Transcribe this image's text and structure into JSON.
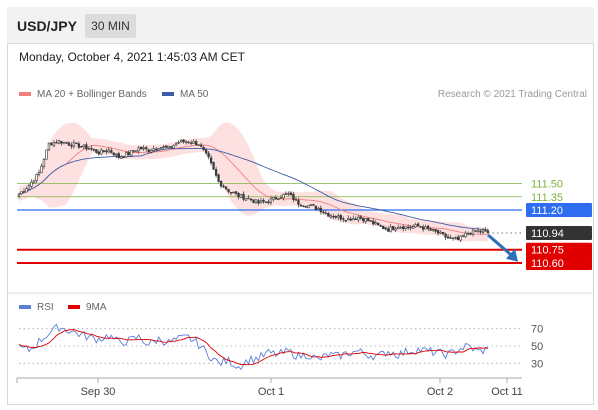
{
  "header": {
    "symbol": "USD/JPY",
    "timeframe": "30 MIN"
  },
  "datetime": "Monday, October 4, 2021 1:45:03 AM CET",
  "legend_price": [
    {
      "label": "MA 20 + Bollinger Bands",
      "color": "#f08080"
    },
    {
      "label": "MA 50",
      "color": "#3b5ca8"
    }
  ],
  "copyright": "Research © 2021 Trading Central",
  "legend_rsi": [
    {
      "label": "RSI",
      "color": "#5b7fd6"
    },
    {
      "label": "9MA",
      "color": "#e00000"
    }
  ],
  "colors": {
    "resistance": "#7cb342",
    "pivot": "#2e6cf0",
    "support": "#e00000",
    "last": "#333333",
    "candle_up": "#3a3a3a",
    "candle_down": "#3a3a3a",
    "band_fill": "#fcd6d6"
  },
  "chart_data": [
    {
      "type": "candlestick",
      "title": "USD/JPY 30 MIN",
      "ylim": [
        110.52,
        112.22
      ],
      "x_tick_labels": [
        "Sep 30",
        "Oct 1",
        "Oct 2",
        "Oct 11"
      ],
      "price_levels": [
        {
          "label": "111.50",
          "value": 111.5,
          "kind": "resistance"
        },
        {
          "label": "111.35",
          "value": 111.35,
          "kind": "resistance"
        },
        {
          "label": "111.20",
          "value": 111.2,
          "kind": "pivot"
        },
        {
          "label": "110.94",
          "value": 110.94,
          "kind": "last"
        },
        {
          "label": "110.75",
          "value": 110.75,
          "kind": "support"
        },
        {
          "label": "110.60",
          "value": 110.6,
          "kind": "support"
        }
      ],
      "close_anchors": [
        [
          0,
          111.38
        ],
        [
          4,
          111.48
        ],
        [
          8,
          111.62
        ],
        [
          12,
          111.95
        ],
        [
          16,
          111.98
        ],
        [
          20,
          111.95
        ],
        [
          24,
          111.93
        ],
        [
          28,
          111.9
        ],
        [
          32,
          111.85
        ],
        [
          36,
          111.88
        ],
        [
          40,
          111.8
        ],
        [
          44,
          111.84
        ],
        [
          48,
          111.9
        ],
        [
          52,
          111.88
        ],
        [
          56,
          111.92
        ],
        [
          60,
          111.9
        ],
        [
          64,
          111.97
        ],
        [
          68,
          111.98
        ],
        [
          72,
          111.95
        ],
        [
          76,
          111.78
        ],
        [
          80,
          111.52
        ],
        [
          84,
          111.42
        ],
        [
          88,
          111.36
        ],
        [
          92,
          111.33
        ],
        [
          96,
          111.28
        ],
        [
          100,
          111.3
        ],
        [
          104,
          111.35
        ],
        [
          108,
          111.38
        ],
        [
          112,
          111.28
        ],
        [
          116,
          111.25
        ],
        [
          120,
          111.22
        ],
        [
          124,
          111.15
        ],
        [
          128,
          111.12
        ],
        [
          132,
          111.1
        ],
        [
          136,
          111.12
        ],
        [
          140,
          111.08
        ],
        [
          144,
          111.02
        ],
        [
          148,
          110.98
        ],
        [
          152,
          111.02
        ],
        [
          156,
          111.0
        ],
        [
          160,
          111.02
        ],
        [
          164,
          110.98
        ],
        [
          168,
          110.94
        ],
        [
          172,
          110.88
        ],
        [
          176,
          110.86
        ],
        [
          180,
          110.94
        ],
        [
          184,
          110.96
        ],
        [
          188,
          110.94
        ]
      ],
      "series": [
        {
          "name": "MA 20 + Bollinger Bands"
        },
        {
          "name": "MA 50"
        }
      ]
    },
    {
      "type": "line",
      "title": "RSI",
      "ylim": [
        20,
        80
      ],
      "y_ticks": [
        70,
        50,
        30
      ],
      "rsi_anchors": [
        [
          0,
          48
        ],
        [
          4,
          45
        ],
        [
          8,
          55
        ],
        [
          12,
          65
        ],
        [
          16,
          72
        ],
        [
          20,
          68
        ],
        [
          24,
          64
        ],
        [
          28,
          60
        ],
        [
          32,
          58
        ],
        [
          36,
          62
        ],
        [
          40,
          54
        ],
        [
          44,
          56
        ],
        [
          48,
          60
        ],
        [
          52,
          52
        ],
        [
          56,
          58
        ],
        [
          60,
          54
        ],
        [
          64,
          58
        ],
        [
          68,
          60
        ],
        [
          72,
          52
        ],
        [
          76,
          40
        ],
        [
          80,
          30
        ],
        [
          84,
          33
        ],
        [
          88,
          26
        ],
        [
          92,
          34
        ],
        [
          96,
          36
        ],
        [
          100,
          42
        ],
        [
          104,
          40
        ],
        [
          108,
          44
        ],
        [
          112,
          38
        ],
        [
          116,
          40
        ],
        [
          120,
          34
        ],
        [
          124,
          40
        ],
        [
          128,
          38
        ],
        [
          132,
          42
        ],
        [
          136,
          44
        ],
        [
          140,
          40
        ],
        [
          144,
          38
        ],
        [
          148,
          44
        ],
        [
          152,
          40
        ],
        [
          156,
          44
        ],
        [
          160,
          46
        ],
        [
          164,
          44
        ],
        [
          168,
          42
        ],
        [
          172,
          40
        ],
        [
          176,
          46
        ],
        [
          180,
          50
        ],
        [
          184,
          44
        ],
        [
          188,
          46
        ]
      ],
      "series": [
        {
          "name": "RSI"
        },
        {
          "name": "9MA"
        }
      ]
    }
  ]
}
